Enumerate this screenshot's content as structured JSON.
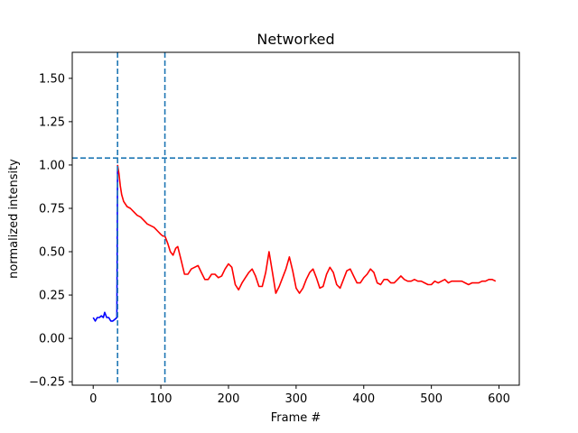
{
  "chart_data": {
    "type": "line",
    "title": "Networked",
    "xlabel": "Frame #",
    "ylabel": "normalized intensity",
    "xlim": [
      -31,
      630
    ],
    "ylim": [
      -0.27,
      1.65
    ],
    "xticks": [
      0,
      100,
      200,
      300,
      400,
      500,
      600
    ],
    "yticks": [
      -0.25,
      0.0,
      0.25,
      0.5,
      0.75,
      1.0,
      1.25,
      1.5
    ],
    "xtick_labels": [
      "0",
      "100",
      "200",
      "300",
      "400",
      "500",
      "600"
    ],
    "ytick_labels": [
      "−0.25",
      "0.00",
      "0.25",
      "0.50",
      "0.75",
      "1.00",
      "1.25",
      "1.50"
    ],
    "grid": false,
    "series": [
      {
        "color": "#0000ff",
        "x": [
          0,
          3,
          6,
          9,
          12,
          15,
          17,
          20,
          23,
          26,
          29,
          32,
          35,
          36
        ],
        "y": [
          0.12,
          0.1,
          0.12,
          0.12,
          0.13,
          0.12,
          0.15,
          0.12,
          0.12,
          0.1,
          0.1,
          0.11,
          0.12,
          1.0
        ]
      },
      {
        "color": "#ff0000",
        "x": [
          36,
          38,
          40,
          42,
          45,
          50,
          55,
          60,
          65,
          70,
          75,
          80,
          85,
          90,
          95,
          100,
          103,
          106,
          110,
          114,
          118,
          122,
          125,
          130,
          135,
          140,
          145,
          150,
          155,
          160,
          165,
          170,
          175,
          180,
          185,
          190,
          195,
          200,
          205,
          210,
          215,
          220,
          225,
          230,
          235,
          240,
          245,
          250,
          255,
          260,
          265,
          270,
          275,
          280,
          285,
          290,
          295,
          300,
          305,
          310,
          315,
          320,
          325,
          330,
          335,
          340,
          345,
          350,
          355,
          360,
          365,
          370,
          375,
          380,
          385,
          390,
          395,
          400,
          405,
          410,
          415,
          420,
          425,
          430,
          435,
          440,
          445,
          450,
          455,
          460,
          465,
          470,
          475,
          480,
          485,
          490,
          495,
          500,
          505,
          510,
          515,
          520,
          525,
          530,
          535,
          540,
          545,
          550,
          555,
          560,
          565,
          570,
          575,
          580,
          585,
          590,
          595
        ],
        "y": [
          1.0,
          0.95,
          0.88,
          0.83,
          0.79,
          0.76,
          0.75,
          0.73,
          0.71,
          0.7,
          0.68,
          0.66,
          0.65,
          0.64,
          0.62,
          0.6,
          0.59,
          0.59,
          0.55,
          0.5,
          0.48,
          0.52,
          0.53,
          0.45,
          0.37,
          0.37,
          0.4,
          0.41,
          0.42,
          0.38,
          0.34,
          0.34,
          0.37,
          0.37,
          0.35,
          0.36,
          0.4,
          0.43,
          0.41,
          0.31,
          0.28,
          0.32,
          0.35,
          0.38,
          0.4,
          0.36,
          0.3,
          0.3,
          0.38,
          0.5,
          0.38,
          0.26,
          0.3,
          0.35,
          0.4,
          0.47,
          0.39,
          0.29,
          0.26,
          0.29,
          0.34,
          0.38,
          0.4,
          0.35,
          0.29,
          0.3,
          0.37,
          0.41,
          0.38,
          0.31,
          0.29,
          0.34,
          0.39,
          0.4,
          0.36,
          0.32,
          0.32,
          0.35,
          0.37,
          0.4,
          0.38,
          0.32,
          0.31,
          0.34,
          0.34,
          0.32,
          0.32,
          0.34,
          0.36,
          0.34,
          0.33,
          0.33,
          0.34,
          0.33,
          0.33,
          0.32,
          0.31,
          0.31,
          0.33,
          0.32,
          0.33,
          0.34,
          0.32,
          0.33,
          0.33,
          0.33,
          0.33,
          0.32,
          0.31,
          0.32,
          0.32,
          0.32,
          0.33,
          0.33,
          0.34,
          0.34,
          0.33
        ]
      }
    ],
    "reference_lines": [
      {
        "orientation": "vertical",
        "value": 36,
        "color": "#1f77b4",
        "style": "dashed"
      },
      {
        "orientation": "vertical",
        "value": 106,
        "color": "#1f77b4",
        "style": "dashed"
      },
      {
        "orientation": "horizontal",
        "value": 1.04,
        "color": "#1f77b4",
        "style": "dashed"
      }
    ]
  }
}
